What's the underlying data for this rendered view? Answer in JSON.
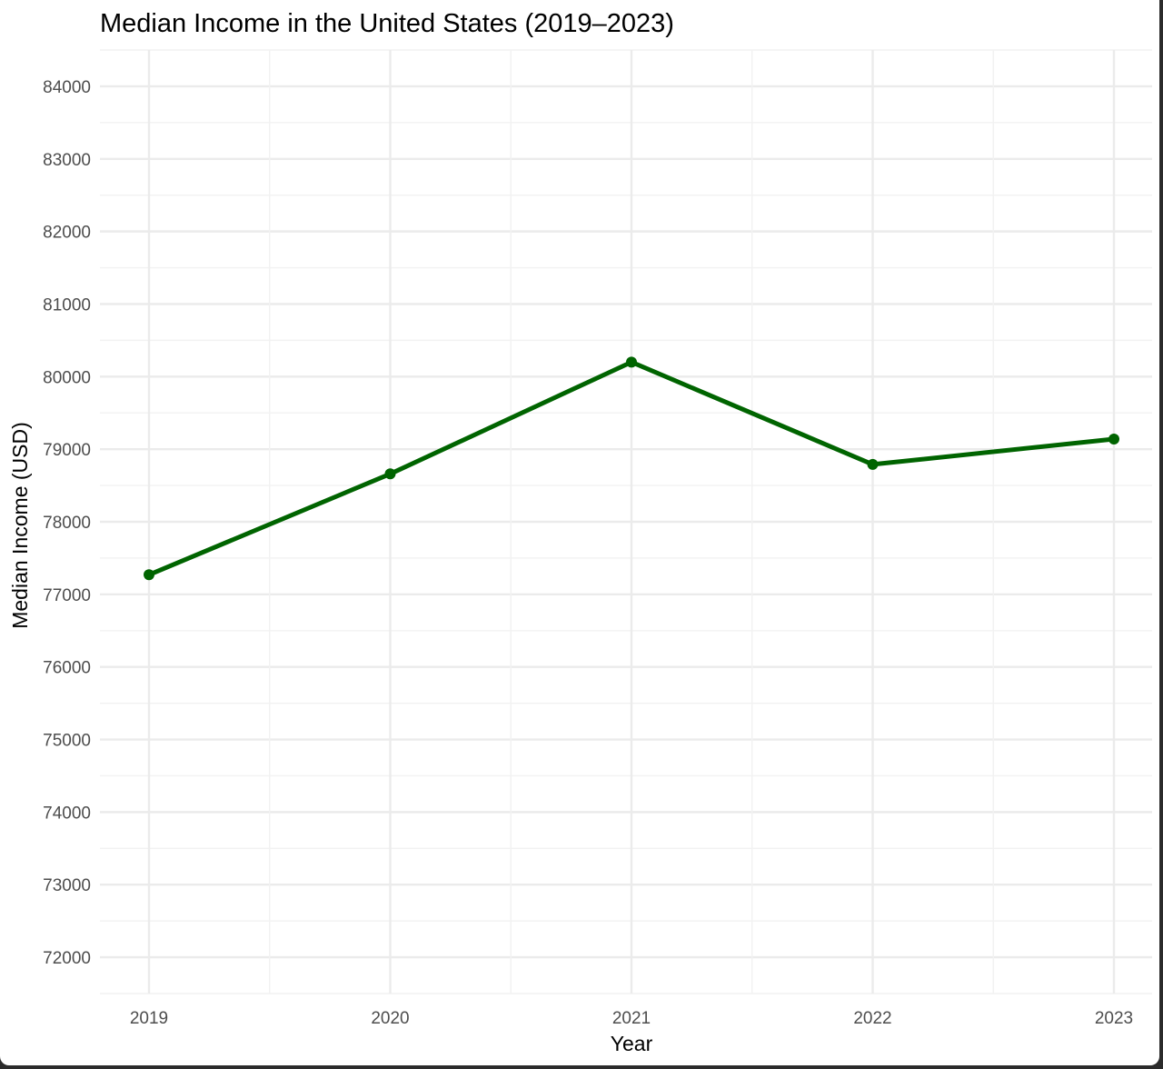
{
  "chart_data": {
    "type": "line",
    "title": "Median Income in the United States (2019–2023)",
    "xlabel": "Year",
    "ylabel": "Median Income (USD)",
    "categories": [
      "2019",
      "2020",
      "2021",
      "2022",
      "2023"
    ],
    "y_ticks": [
      "72000",
      "73000",
      "74000",
      "75000",
      "76000",
      "77000",
      "78000",
      "79000",
      "80000",
      "81000",
      "82000",
      "83000",
      "84000"
    ],
    "ylim": [
      71500,
      84500
    ],
    "series": [
      {
        "values": [
          77270,
          78660,
          80200,
          78790,
          79140
        ],
        "color": "#006400"
      }
    ],
    "grid": true,
    "legend": "none"
  }
}
